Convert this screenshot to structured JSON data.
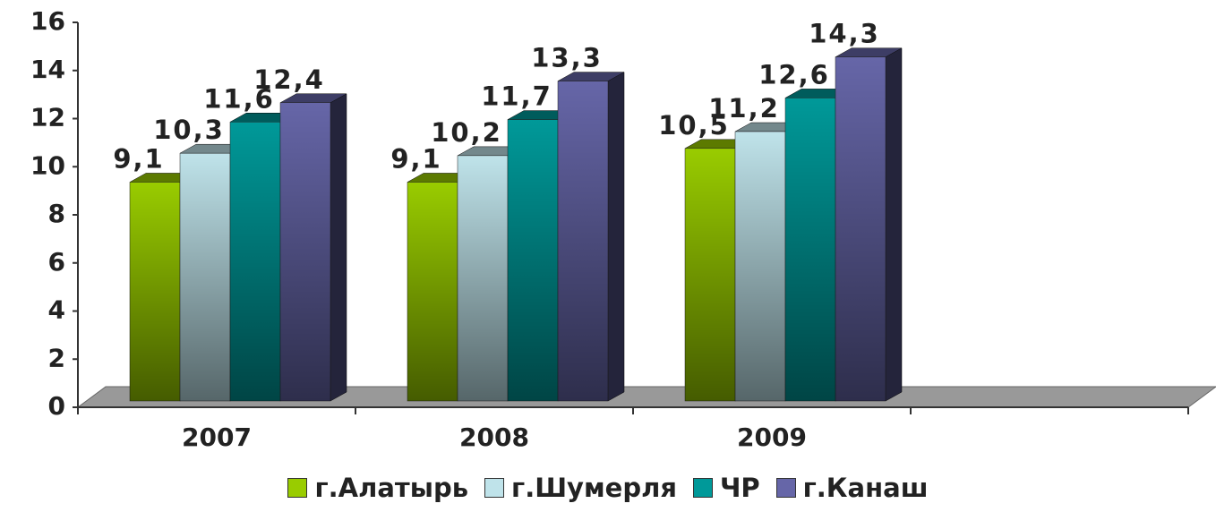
{
  "chart_data": {
    "type": "bar",
    "categories": [
      "2007",
      "2008",
      "2009",
      null
    ],
    "series": [
      {
        "name": "г.Алатырь",
        "color": "#99cc00",
        "values": [
          9.1,
          9.1,
          10.5,
          null
        ],
        "value_labels": [
          "9,1",
          "9,1",
          "10,5",
          null
        ]
      },
      {
        "name": "г.Шумерля",
        "color": "#bfe3ea",
        "values": [
          10.3,
          10.2,
          11.2,
          null
        ],
        "value_labels": [
          "10,3",
          "10,2",
          "11,2",
          null
        ]
      },
      {
        "name": "ЧР",
        "color": "#009999",
        "values": [
          11.6,
          11.7,
          12.6,
          null
        ],
        "value_labels": [
          "11,6",
          "11,7",
          "12,6",
          null
        ]
      },
      {
        "name": "г.Канаш",
        "color": "#6666a8",
        "values": [
          12.4,
          13.3,
          14.3,
          null
        ],
        "value_labels": [
          "12,4",
          "13,3",
          "14,3",
          null
        ]
      }
    ],
    "ylim": [
      0,
      16
    ],
    "yticks": [
      0,
      2,
      4,
      6,
      8,
      10,
      12,
      14,
      16
    ],
    "legend": "bottom"
  }
}
